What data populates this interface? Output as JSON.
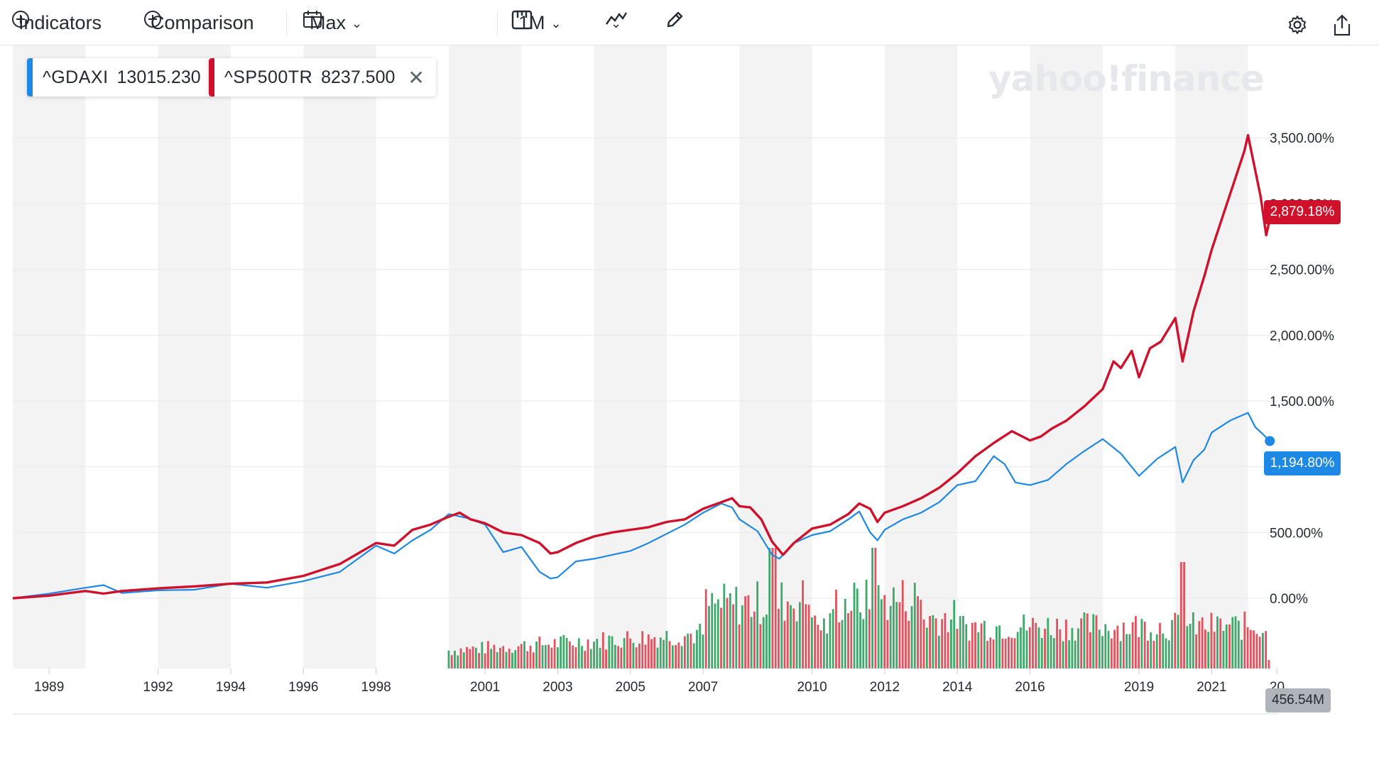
{
  "toolbar": {
    "indicators_label": "Indicators",
    "comparison_label": "Comparison",
    "range_label": "Max",
    "interval_label": "1M"
  },
  "legend": [
    {
      "symbol": "^GDAXI",
      "value": "13015.230",
      "color": "#1e88e5"
    },
    {
      "symbol": "^SP500TR",
      "value": "8237.500",
      "color": "#d0112b"
    }
  ],
  "watermark": "yahoo!finance",
  "tags": {
    "sp_last": "2,879.18%",
    "dax_last": "1,194.80%",
    "volume_last": "456.54M"
  },
  "colors": {
    "sp500tr": "#d0112b",
    "gdaxi": "#1e88e5",
    "vol_up": "#3fa86b",
    "vol_down": "#e0525e",
    "band": "#f3f3f3"
  },
  "chart_data": {
    "type": "line",
    "title": "",
    "xlabel": "",
    "ylabel": "",
    "y_unit": "%",
    "ylim": [
      -480,
      3760
    ],
    "x_range": [
      1988.0,
      2022.83
    ],
    "x_ticks": [
      "1989",
      "1992",
      "1994",
      "1996",
      "1998",
      "2001",
      "2003",
      "2005",
      "2007",
      "2010",
      "2012",
      "2014",
      "2016",
      "2019",
      "2021",
      "20"
    ],
    "y_ticks": [
      "3,500.00%",
      "3,000.00%",
      "2,500.00%",
      "2,000.00%",
      "1,500.00%",
      "1,000.00%",
      "500.00%",
      "0.00%"
    ],
    "y_tick_values": [
      3500,
      3000,
      2500,
      2000,
      1500,
      1000,
      500,
      0
    ],
    "grid": true,
    "series": [
      {
        "name": "^SP500TR",
        "color": "#d0112b",
        "points": [
          [
            1988.0,
            0
          ],
          [
            1989.0,
            20
          ],
          [
            1990.0,
            55
          ],
          [
            1990.5,
            35
          ],
          [
            1991.0,
            55
          ],
          [
            1992.0,
            75
          ],
          [
            1993.0,
            90
          ],
          [
            1994.0,
            110
          ],
          [
            1995.0,
            120
          ],
          [
            1996.0,
            170
          ],
          [
            1997.0,
            260
          ],
          [
            1998.0,
            420
          ],
          [
            1998.5,
            400
          ],
          [
            1999.0,
            520
          ],
          [
            1999.5,
            560
          ],
          [
            2000.0,
            620
          ],
          [
            2000.3,
            650
          ],
          [
            2000.6,
            600
          ],
          [
            2001.0,
            570
          ],
          [
            2001.5,
            500
          ],
          [
            2002.0,
            480
          ],
          [
            2002.5,
            420
          ],
          [
            2002.8,
            340
          ],
          [
            2003.0,
            350
          ],
          [
            2003.5,
            420
          ],
          [
            2004.0,
            470
          ],
          [
            2004.5,
            500
          ],
          [
            2005.0,
            520
          ],
          [
            2005.5,
            540
          ],
          [
            2006.0,
            580
          ],
          [
            2006.5,
            600
          ],
          [
            2007.0,
            680
          ],
          [
            2007.5,
            730
          ],
          [
            2007.8,
            760
          ],
          [
            2008.0,
            700
          ],
          [
            2008.3,
            690
          ],
          [
            2008.6,
            600
          ],
          [
            2008.9,
            430
          ],
          [
            2009.2,
            330
          ],
          [
            2009.5,
            420
          ],
          [
            2010.0,
            530
          ],
          [
            2010.5,
            560
          ],
          [
            2011.0,
            640
          ],
          [
            2011.3,
            720
          ],
          [
            2011.6,
            680
          ],
          [
            2011.8,
            580
          ],
          [
            2012.0,
            650
          ],
          [
            2012.5,
            700
          ],
          [
            2013.0,
            760
          ],
          [
            2013.5,
            840
          ],
          [
            2014.0,
            950
          ],
          [
            2014.5,
            1080
          ],
          [
            2015.0,
            1180
          ],
          [
            2015.5,
            1270
          ],
          [
            2016.0,
            1200
          ],
          [
            2016.3,
            1230
          ],
          [
            2016.6,
            1290
          ],
          [
            2017.0,
            1350
          ],
          [
            2017.5,
            1460
          ],
          [
            2018.0,
            1590
          ],
          [
            2018.3,
            1800
          ],
          [
            2018.5,
            1750
          ],
          [
            2018.8,
            1880
          ],
          [
            2019.0,
            1680
          ],
          [
            2019.3,
            1900
          ],
          [
            2019.6,
            1950
          ],
          [
            2020.0,
            2130
          ],
          [
            2020.2,
            1800
          ],
          [
            2020.5,
            2180
          ],
          [
            2020.8,
            2450
          ],
          [
            2021.0,
            2650
          ],
          [
            2021.3,
            2900
          ],
          [
            2021.6,
            3150
          ],
          [
            2021.9,
            3400
          ],
          [
            2022.0,
            3520
          ],
          [
            2022.2,
            3250
          ],
          [
            2022.35,
            3050
          ],
          [
            2022.5,
            2760
          ],
          [
            2022.6,
            2879
          ]
        ]
      },
      {
        "name": "^GDAXI",
        "color": "#1e88e5",
        "points": [
          [
            1988.0,
            0
          ],
          [
            1989.0,
            35
          ],
          [
            1990.0,
            80
          ],
          [
            1990.5,
            100
          ],
          [
            1991.0,
            40
          ],
          [
            1992.0,
            60
          ],
          [
            1993.0,
            65
          ],
          [
            1994.0,
            110
          ],
          [
            1995.0,
            80
          ],
          [
            1996.0,
            130
          ],
          [
            1997.0,
            200
          ],
          [
            1998.0,
            400
          ],
          [
            1998.5,
            340
          ],
          [
            1999.0,
            440
          ],
          [
            1999.5,
            520
          ],
          [
            2000.0,
            640
          ],
          [
            2000.5,
            610
          ],
          [
            2001.0,
            560
          ],
          [
            2001.5,
            350
          ],
          [
            2002.0,
            390
          ],
          [
            2002.5,
            200
          ],
          [
            2002.8,
            150
          ],
          [
            2003.0,
            160
          ],
          [
            2003.5,
            280
          ],
          [
            2004.0,
            300
          ],
          [
            2004.5,
            330
          ],
          [
            2005.0,
            360
          ],
          [
            2005.5,
            420
          ],
          [
            2006.0,
            490
          ],
          [
            2006.5,
            560
          ],
          [
            2007.0,
            650
          ],
          [
            2007.5,
            720
          ],
          [
            2007.8,
            690
          ],
          [
            2008.0,
            600
          ],
          [
            2008.5,
            510
          ],
          [
            2008.9,
            330
          ],
          [
            2009.1,
            300
          ],
          [
            2009.5,
            420
          ],
          [
            2010.0,
            480
          ],
          [
            2010.5,
            510
          ],
          [
            2011.0,
            600
          ],
          [
            2011.3,
            660
          ],
          [
            2011.6,
            500
          ],
          [
            2011.8,
            440
          ],
          [
            2012.0,
            520
          ],
          [
            2012.5,
            600
          ],
          [
            2013.0,
            650
          ],
          [
            2013.5,
            730
          ],
          [
            2014.0,
            860
          ],
          [
            2014.5,
            890
          ],
          [
            2015.0,
            1080
          ],
          [
            2015.3,
            1020
          ],
          [
            2015.6,
            880
          ],
          [
            2016.0,
            860
          ],
          [
            2016.5,
            900
          ],
          [
            2017.0,
            1020
          ],
          [
            2017.5,
            1120
          ],
          [
            2018.0,
            1210
          ],
          [
            2018.5,
            1100
          ],
          [
            2019.0,
            930
          ],
          [
            2019.5,
            1060
          ],
          [
            2020.0,
            1150
          ],
          [
            2020.2,
            880
          ],
          [
            2020.5,
            1050
          ],
          [
            2020.8,
            1130
          ],
          [
            2021.0,
            1260
          ],
          [
            2021.5,
            1350
          ],
          [
            2022.0,
            1410
          ],
          [
            2022.2,
            1300
          ],
          [
            2022.4,
            1250
          ],
          [
            2022.6,
            1195
          ]
        ]
      }
    ],
    "volume": {
      "name": "Volume",
      "start_year": 2000.0,
      "end_year": 2022.6,
      "step_years": 0.0833,
      "max_label": "456.54M"
    }
  }
}
